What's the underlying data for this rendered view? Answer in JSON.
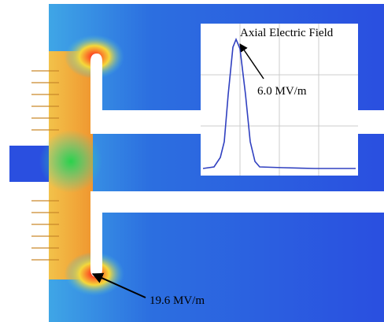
{
  "inset": {
    "title": "Axial Electric Field",
    "peak_label": "6.0 MV/m"
  },
  "annotations": {
    "surface_peak_label": "19.6 MV/m"
  }
}
